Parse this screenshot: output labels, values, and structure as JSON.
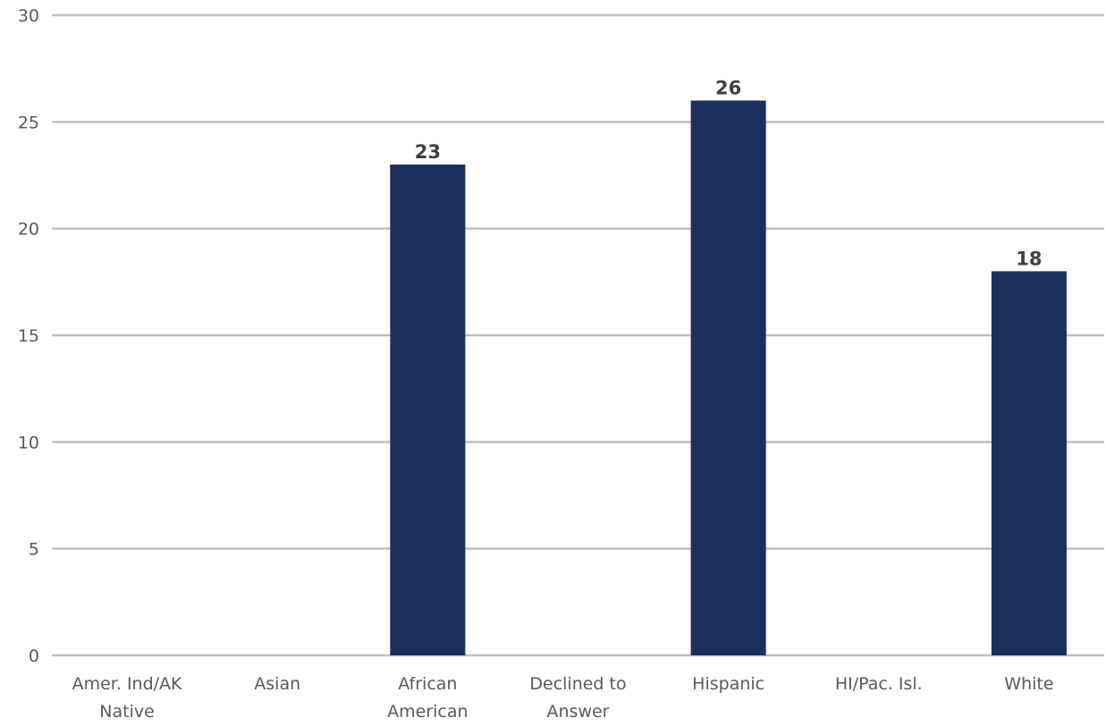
{
  "chart_data": {
    "type": "bar",
    "categories": [
      [
        "Amer. Ind/AK",
        "Native"
      ],
      [
        "Asian"
      ],
      [
        "African",
        "American"
      ],
      [
        "Declined to",
        "Answer"
      ],
      [
        "Hispanic"
      ],
      [
        "HI/Pac. Isl."
      ],
      [
        "White"
      ]
    ],
    "values": [
      0,
      0,
      23,
      0,
      26,
      0,
      18
    ],
    "data_labels": [
      "",
      "",
      "23",
      "",
      "26",
      "",
      "18"
    ],
    "ylim": [
      0,
      30
    ],
    "yticks": [
      "0",
      "5",
      "10",
      "15",
      "20",
      "25",
      "30"
    ],
    "grid": true,
    "bar_color": "#1b305b",
    "title": "",
    "xlabel": "",
    "ylabel": ""
  }
}
